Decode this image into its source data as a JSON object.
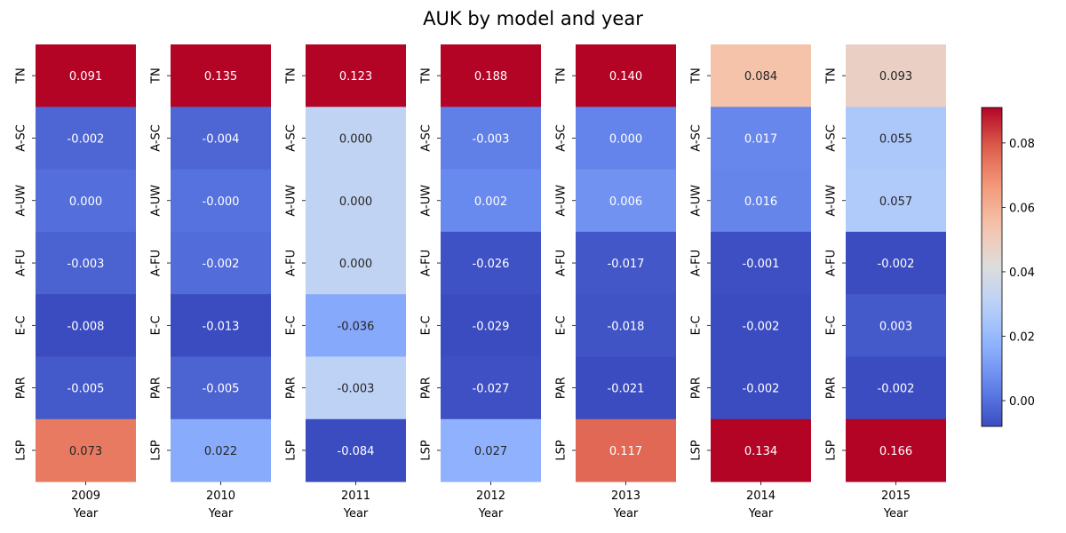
{
  "chart_data": {
    "type": "heatmap",
    "title": "AUK by model and year",
    "rows": [
      "TN",
      "A-SC",
      "A-UW",
      "A-FU",
      "E-C",
      "PAR",
      "LSP"
    ],
    "xlabel": "Year",
    "panels": [
      {
        "year": "2009",
        "values": [
          "0.091",
          "-0.002",
          "0.000",
          "-0.003",
          "-0.008",
          "-0.005",
          "0.073"
        ]
      },
      {
        "year": "2010",
        "values": [
          "0.135",
          "-0.004",
          "-0.000",
          "-0.002",
          "-0.013",
          "-0.005",
          "0.022"
        ]
      },
      {
        "year": "2011",
        "values": [
          "0.123",
          "0.000",
          "0.000",
          "0.000",
          "-0.036",
          "-0.003",
          "-0.084"
        ]
      },
      {
        "year": "2012",
        "values": [
          "0.188",
          "-0.003",
          "0.002",
          "-0.026",
          "-0.029",
          "-0.027",
          "0.027"
        ]
      },
      {
        "year": "2013",
        "values": [
          "0.140",
          "0.000",
          "0.006",
          "-0.017",
          "-0.018",
          "-0.021",
          "0.117"
        ]
      },
      {
        "year": "2014",
        "values": [
          "0.084",
          "0.017",
          "0.016",
          "-0.001",
          "-0.002",
          "-0.002",
          "0.134"
        ]
      },
      {
        "year": "2015",
        "values": [
          "0.093",
          "0.055",
          "0.057",
          "-0.002",
          "0.003",
          "-0.002",
          "0.166"
        ]
      }
    ],
    "panel_color_ranges": [
      [
        -0.008,
        0.091
      ],
      [
        -0.013,
        0.135
      ],
      [
        -0.084,
        0.123
      ],
      [
        -0.029,
        0.188
      ],
      [
        -0.021,
        0.14
      ],
      [
        -0.002,
        0.134
      ],
      [
        -0.002,
        0.166
      ]
    ],
    "colormap": "coolwarm",
    "colorbar": {
      "range": [
        -0.008,
        0.091
      ],
      "ticks": [
        "0.00",
        "0.02",
        "0.04",
        "0.06",
        "0.08"
      ],
      "tick_values": [
        0.0,
        0.02,
        0.04,
        0.06,
        0.08
      ]
    }
  }
}
